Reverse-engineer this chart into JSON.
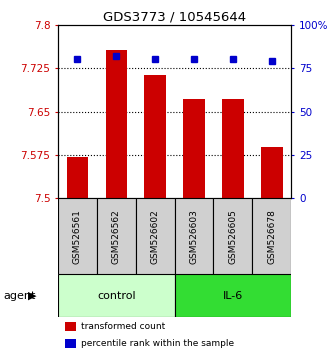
{
  "title": "GDS3773 / 10545644",
  "samples": [
    "GSM526561",
    "GSM526562",
    "GSM526602",
    "GSM526603",
    "GSM526605",
    "GSM526678"
  ],
  "bar_values": [
    7.572,
    7.756,
    7.713,
    7.672,
    7.672,
    7.588
  ],
  "dot_values": [
    80,
    82,
    80,
    80,
    80,
    79
  ],
  "bar_color": "#cc0000",
  "dot_color": "#0000cc",
  "ylim_left": [
    7.5,
    7.8
  ],
  "ylim_right": [
    0,
    100
  ],
  "yticks_left": [
    7.5,
    7.575,
    7.65,
    7.725,
    7.8
  ],
  "ytick_labels_left": [
    "7.5",
    "7.575",
    "7.65",
    "7.725",
    "7.8"
  ],
  "yticks_right": [
    0,
    25,
    50,
    75,
    100
  ],
  "ytick_labels_right": [
    "0",
    "25",
    "50",
    "75",
    "100%"
  ],
  "grid_ticks": [
    7.575,
    7.65,
    7.725
  ],
  "control_color": "#ccffcc",
  "il6_color": "#33dd33",
  "sample_box_color": "#d0d0d0",
  "legend_items": [
    {
      "label": "transformed count",
      "color": "#cc0000"
    },
    {
      "label": "percentile rank within the sample",
      "color": "#0000cc"
    }
  ],
  "bar_width": 0.55,
  "figsize": [
    3.31,
    3.54
  ],
  "dpi": 100
}
